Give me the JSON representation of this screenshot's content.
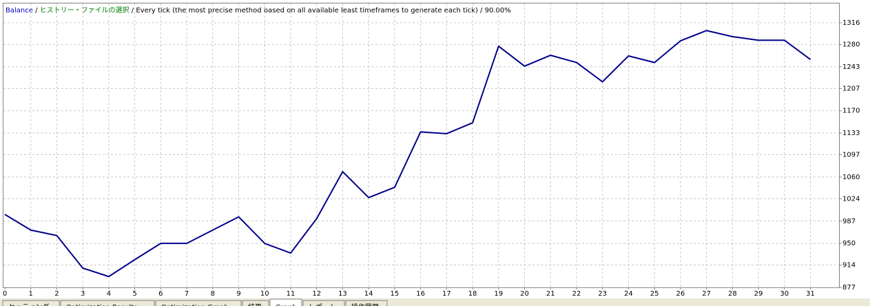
{
  "header": [
    {
      "text": "Balance",
      "color": "#0000c0"
    },
    {
      "text": " / ",
      "color": "#000000"
    },
    {
      "text": "ヒストリー・ファイルの選択",
      "color": "#008000"
    },
    {
      "text": " / ",
      "color": "#000000"
    },
    {
      "text": "Every tick (the most precise method based on all available least timeframes to generate each tick)",
      "color": "#000000"
    },
    {
      "text": " / ",
      "color": "#000000"
    },
    {
      "text": "90.00%",
      "color": "#000000"
    }
  ],
  "chart_data": {
    "type": "line",
    "x": [
      0,
      1,
      2,
      3,
      4,
      5,
      6,
      7,
      8,
      9,
      10,
      11,
      12,
      13,
      14,
      15,
      16,
      17,
      18,
      19,
      20,
      21,
      22,
      23,
      24,
      25,
      26,
      27,
      28,
      29,
      30,
      31
    ],
    "series": [
      {
        "name": "Balance",
        "color": "#00008b",
        "values": [
          998,
          972,
          963,
          909,
          895,
          923,
          950,
          950,
          972,
          994,
          950,
          934,
          991,
          1069,
          1026,
          1043,
          1135,
          1132,
          1150,
          1277,
          1244,
          1262,
          1250,
          1218,
          1261,
          1250,
          1286,
          1303,
          1293,
          1287,
          1287,
          1255
        ]
      }
    ],
    "xlim": [
      0,
      32.1
    ],
    "xticks": [
      0,
      1,
      2,
      3,
      4,
      5,
      6,
      7,
      8,
      9,
      10,
      11,
      12,
      13,
      14,
      15,
      16,
      17,
      18,
      19,
      20,
      21,
      22,
      23,
      24,
      25,
      26,
      27,
      28,
      29,
      30,
      31
    ],
    "ylim": [
      877,
      1348
    ],
    "yticks": [
      877,
      914,
      950,
      987,
      1024,
      1060,
      1097,
      1133,
      1170,
      1207,
      1243,
      1280,
      1316
    ],
    "grid": true
  },
  "tabs": [
    "セッティング",
    "Optimization Results",
    "Optimization Graph",
    "結果",
    "Graph",
    "レポート",
    "操作履歴"
  ],
  "selected_tab": 4
}
